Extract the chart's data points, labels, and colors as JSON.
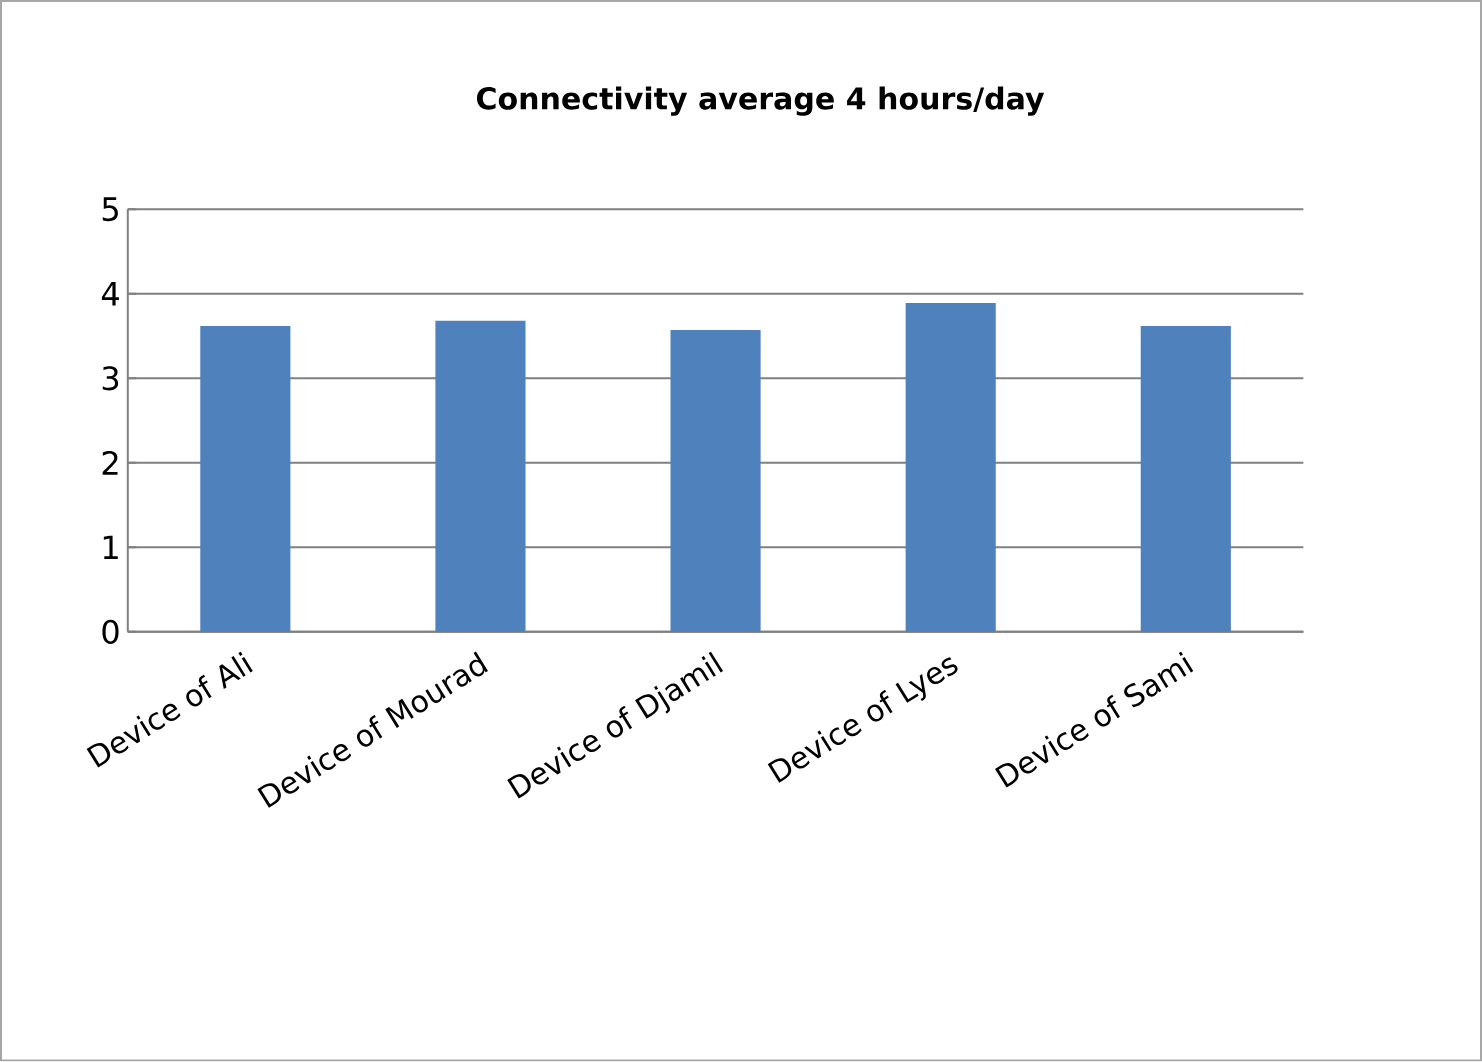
{
  "chart_data": {
    "type": "bar",
    "title": "Connectivity average 4 hours/day",
    "categories": [
      "Device of Ali",
      "Device of Mourad",
      "Device of Djamil",
      "Device of Lyes",
      "Device of Sami"
    ],
    "values": [
      3.62,
      3.68,
      3.57,
      3.89,
      3.62
    ],
    "color": "#4f81bd",
    "ylim": [
      0,
      5
    ],
    "yticks": [
      0,
      1,
      2,
      3,
      4,
      5
    ],
    "grid": "y"
  }
}
